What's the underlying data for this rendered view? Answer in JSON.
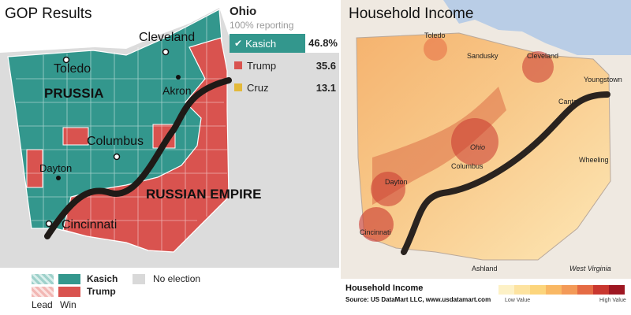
{
  "left_panel": {
    "title": "GOP Results",
    "state": "Ohio",
    "reporting": "100% reporting",
    "candidates": [
      {
        "name": "Kasich",
        "pct": "46.8%",
        "color": "#33978d",
        "winner": true
      },
      {
        "name": "Trump",
        "pct": "35.6",
        "color": "#d9534f",
        "winner": false
      },
      {
        "name": "Cruz",
        "pct": "13.1",
        "color": "#e3b93a",
        "winner": false
      }
    ],
    "map_labels": {
      "cleveland": "Cleveland",
      "toledo": "Toledo",
      "akron": "Akron",
      "columbus": "Columbus",
      "dayton": "Dayton",
      "cincinnati": "Cincinnati",
      "prussia": "PRUSSIA",
      "russian_empire": "RUSSIAN EMPIRE"
    },
    "legend": {
      "kasich": "Kasich",
      "trump": "Trump",
      "no_election": "No election",
      "lead": "Lead",
      "win": "Win"
    },
    "colors": {
      "kasich": "#33978d",
      "trump": "#d9534f",
      "lake": "#ffffff",
      "surrounding": "#dcdcdc"
    }
  },
  "right_panel": {
    "title": "Household Income",
    "city_labels": {
      "toledo": "Toledo",
      "sandusky": "Sandusky",
      "cleveland": "Cleveland",
      "youngstown": "Youngstown",
      "canton": "Canton",
      "ohio": "Ohio",
      "columbus": "Columbus",
      "dayton": "Dayton",
      "wheeling": "Wheeling",
      "cincinnati": "Cincinnati",
      "ashland": "Ashland",
      "west_virginia": "West Virginia"
    },
    "footer": {
      "heading": "Household Income",
      "source": "Source:  US DataMart LLC,  www.usdatamart.com",
      "low": "Low Value",
      "high": "High Value"
    },
    "scale_colors": [
      "#fdf1c6",
      "#fde3a0",
      "#fcd57c",
      "#f9b864",
      "#f39a58",
      "#e56b44",
      "#c9372f",
      "#9e1722"
    ]
  }
}
